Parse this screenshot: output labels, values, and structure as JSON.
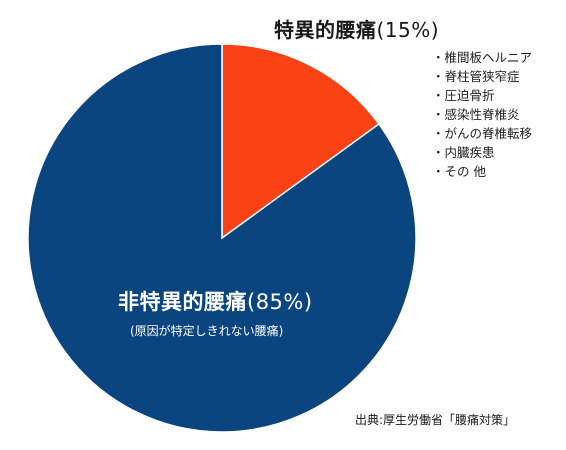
{
  "chart_data": {
    "type": "pie",
    "slices": [
      {
        "label": "非特異的腰痛",
        "value": 85,
        "pct_label": "(85%)",
        "color": "#0b4580"
      },
      {
        "label": "特異的腰痛",
        "value": 15,
        "pct_label": "(15%)",
        "color": "#fc4114"
      }
    ],
    "annotations": {
      "nonspecific_note": "(原因が特定しきれない腰痛)",
      "specific_causes": [
        "・椎間板ヘルニア",
        "・脊柱管狭窄症",
        "・圧迫骨折",
        "・感染性脊椎炎",
        "・がんの脊椎転移",
        "・内臓疾患",
        "・その 他"
      ],
      "source": "出典:厚生労働省「腰痛対策」"
    }
  }
}
